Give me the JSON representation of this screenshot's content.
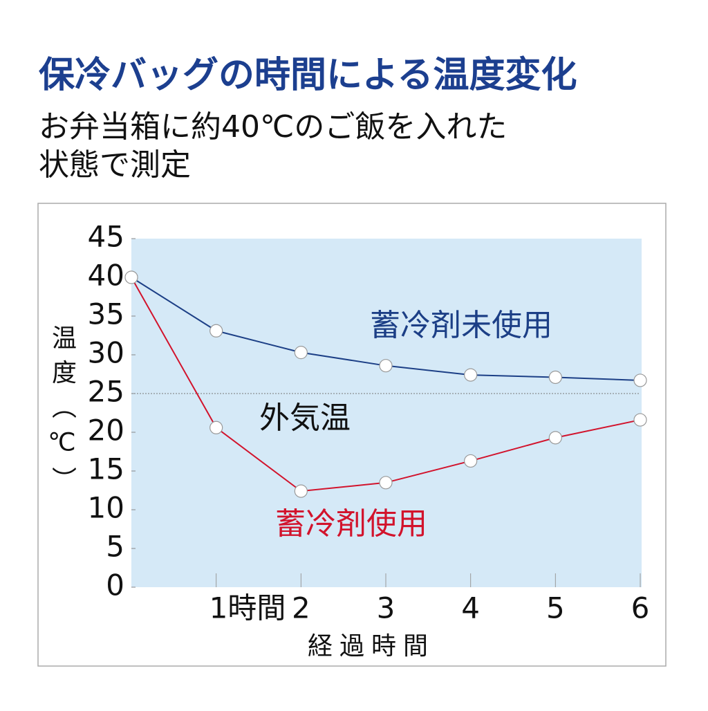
{
  "chart_data": {
    "type": "line",
    "title": "保冷バッグの時間による温度変化",
    "subtitle": [
      "お弁当箱に約40℃のご飯を入れた",
      "状態で測定"
    ],
    "x_label": "経過時間",
    "y_label": "温度（℃）",
    "x": [
      0,
      1,
      2,
      3,
      4,
      5,
      6
    ],
    "series": [
      {
        "name": "蓄冷剤未使用",
        "color": "#1c3f86",
        "values": [
          40,
          33.1,
          30.3,
          28.6,
          27.4,
          27.1,
          26.7
        ]
      },
      {
        "name": "蓄冷剤使用",
        "color": "#d2132c",
        "values": [
          40,
          20.6,
          12.4,
          13.5,
          16.3,
          19.3,
          21.6
        ]
      }
    ],
    "xlim": [
      0,
      6
    ],
    "xticks": [
      {
        "value": 1,
        "label": "1時間"
      },
      2,
      3,
      4,
      5,
      6
    ],
    "ylim": [
      0,
      45
    ],
    "yticks": [
      0,
      5,
      10,
      15,
      20,
      25,
      30,
      35,
      40,
      45
    ],
    "reference_line": {
      "value": 25,
      "label": "外気温"
    },
    "grid": false
  }
}
